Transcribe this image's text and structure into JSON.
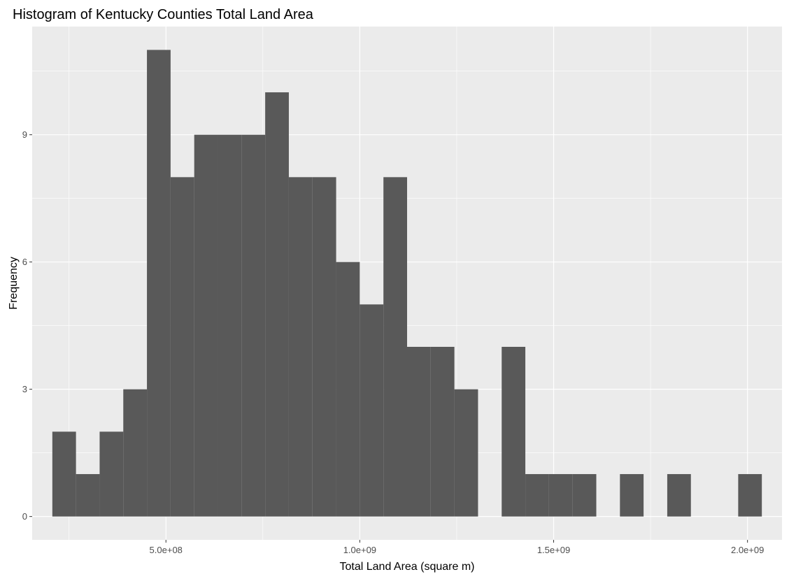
{
  "chart_data": {
    "type": "bar",
    "title": "Histogram of Kentucky Counties Total Land Area",
    "xlabel": "Total Land Area (square m)",
    "ylabel": "Frequency",
    "bin_width": 61000000,
    "bins": [
      {
        "start": 207000000,
        "end": 268000000,
        "count": 2
      },
      {
        "start": 268000000,
        "end": 329000000,
        "count": 1
      },
      {
        "start": 329000000,
        "end": 390000000,
        "count": 2
      },
      {
        "start": 390000000,
        "end": 451000000,
        "count": 3
      },
      {
        "start": 451000000,
        "end": 512000000,
        "count": 11
      },
      {
        "start": 512000000,
        "end": 573000000,
        "count": 8
      },
      {
        "start": 573000000,
        "end": 634000000,
        "count": 9
      },
      {
        "start": 634000000,
        "end": 695000000,
        "count": 9
      },
      {
        "start": 695000000,
        "end": 756000000,
        "count": 9
      },
      {
        "start": 756000000,
        "end": 817000000,
        "count": 10
      },
      {
        "start": 817000000,
        "end": 878000000,
        "count": 8
      },
      {
        "start": 878000000,
        "end": 939000000,
        "count": 8
      },
      {
        "start": 939000000,
        "end": 1000000000,
        "count": 6
      },
      {
        "start": 1000000000,
        "end": 1061000000,
        "count": 5
      },
      {
        "start": 1061000000,
        "end": 1122000000,
        "count": 8
      },
      {
        "start": 1122000000,
        "end": 1183000000,
        "count": 4
      },
      {
        "start": 1183000000,
        "end": 1244000000,
        "count": 4
      },
      {
        "start": 1244000000,
        "end": 1305000000,
        "count": 3
      },
      {
        "start": 1305000000,
        "end": 1366000000,
        "count": 0
      },
      {
        "start": 1366000000,
        "end": 1427000000,
        "count": 4
      },
      {
        "start": 1427000000,
        "end": 1488000000,
        "count": 1
      },
      {
        "start": 1488000000,
        "end": 1549000000,
        "count": 1
      },
      {
        "start": 1549000000,
        "end": 1610000000,
        "count": 1
      },
      {
        "start": 1610000000,
        "end": 1671000000,
        "count": 0
      },
      {
        "start": 1671000000,
        "end": 1732000000,
        "count": 1
      },
      {
        "start": 1732000000,
        "end": 1793000000,
        "count": 0
      },
      {
        "start": 1793000000,
        "end": 1854000000,
        "count": 1
      },
      {
        "start": 1854000000,
        "end": 1915000000,
        "count": 0
      },
      {
        "start": 1915000000,
        "end": 1976000000,
        "count": 0
      },
      {
        "start": 1976000000,
        "end": 2037000000,
        "count": 1
      }
    ],
    "xlim": [
      155000000,
      2089000000
    ],
    "ylim": [
      -0.55,
      11.55
    ],
    "x_ticks": [
      {
        "value": 500000000,
        "label": "5.0e+08"
      },
      {
        "value": 1000000000,
        "label": "1.0e+09"
      },
      {
        "value": 1500000000,
        "label": "1.5e+09"
      },
      {
        "value": 2000000000,
        "label": "2.0e+09"
      }
    ],
    "x_minor": [
      250000000,
      750000000,
      1250000000,
      1750000000
    ],
    "y_ticks": [
      {
        "value": 0,
        "label": "0"
      },
      {
        "value": 3,
        "label": "3"
      },
      {
        "value": 6,
        "label": "6"
      },
      {
        "value": 9,
        "label": "9"
      }
    ],
    "y_minor": [
      1.5,
      4.5,
      7.5,
      10.5
    ],
    "grid": true,
    "colors": {
      "panel": "#ebebeb",
      "grid_major": "#ffffff",
      "bar_fill": "#595959",
      "tick_label": "#4d4d4d",
      "tick_mark": "#333333"
    }
  }
}
